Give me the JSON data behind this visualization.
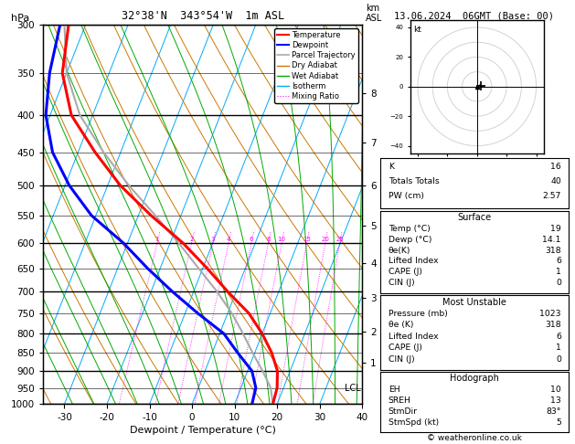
{
  "title_left": "32°38'N  343°54'W  1m ASL",
  "title_date": "13.06.2024  06GMT (Base: 00)",
  "xlabel": "Dewpoint / Temperature (°C)",
  "pressure_levels": [
    300,
    350,
    400,
    450,
    500,
    550,
    600,
    650,
    700,
    750,
    800,
    850,
    900,
    950,
    1000
  ],
  "pressure_major": [
    300,
    400,
    500,
    600,
    700,
    800,
    900,
    1000
  ],
  "t_min": -35,
  "t_max": 40,
  "temp_ticks": [
    -30,
    -20,
    -10,
    0,
    10,
    20,
    30,
    40
  ],
  "temp_profile_T": [
    19,
    18.5,
    17,
    14,
    10,
    5,
    -2,
    -9,
    -17,
    -27,
    -37,
    -46,
    -55,
    -61,
    -64
  ],
  "temp_profile_p": [
    1000,
    950,
    900,
    850,
    800,
    750,
    700,
    650,
    600,
    550,
    500,
    450,
    400,
    350,
    300
  ],
  "dewp_profile_T": [
    14.1,
    13.5,
    11,
    6,
    1,
    -7,
    -15,
    -23,
    -31,
    -41,
    -49,
    -56,
    -61,
    -64,
    -66
  ],
  "dewp_profile_p": [
    1000,
    950,
    900,
    850,
    800,
    750,
    700,
    650,
    600,
    550,
    500,
    450,
    400,
    350,
    300
  ],
  "parcel_T": [
    19,
    17,
    13.5,
    9.5,
    5.5,
    1.0,
    -4.5,
    -11,
    -18,
    -26,
    -35,
    -44,
    -53,
    -60,
    -65
  ],
  "parcel_p": [
    1000,
    950,
    900,
    850,
    800,
    750,
    700,
    650,
    600,
    550,
    500,
    450,
    400,
    350,
    300
  ],
  "lcl_pressure": 950,
  "mixing_ratio_values": [
    1,
    2,
    3,
    4,
    6,
    8,
    10,
    15,
    20,
    25
  ],
  "mixing_ratio_color": "#ff00ff",
  "isotherm_color": "#00aaff",
  "dry_adiabat_color": "#cc7700",
  "wet_adiabat_color": "#00aa00",
  "temp_color": "#ff0000",
  "dewp_color": "#0000ff",
  "parcel_color": "#aaaaaa",
  "km_ticks": [
    1,
    2,
    3,
    4,
    5,
    6,
    7,
    8
  ],
  "km_pressures": [
    877,
    795,
    715,
    640,
    568,
    500,
    436,
    373
  ],
  "skew_factor": 35,
  "indices": {
    "K": "16",
    "Totals Totals": "40",
    "PW (cm)": "2.57"
  },
  "surface_data": [
    [
      "Temp (°C)",
      "19"
    ],
    [
      "Dewp (°C)",
      "14.1"
    ],
    [
      "θe(K)",
      "318"
    ],
    [
      "Lifted Index",
      "6"
    ],
    [
      "CAPE (J)",
      "1"
    ],
    [
      "CIN (J)",
      "0"
    ]
  ],
  "unstable_data": [
    [
      "Pressure (mb)",
      "1023"
    ],
    [
      "θe (K)",
      "318"
    ],
    [
      "Lifted Index",
      "6"
    ],
    [
      "CAPE (J)",
      "1"
    ],
    [
      "CIN (J)",
      "0"
    ]
  ],
  "hodograph_data": [
    [
      "EH",
      "10"
    ],
    [
      "SREH",
      "13"
    ],
    [
      "StmDir",
      "83°"
    ],
    [
      "StmSpd (kt)",
      "5"
    ]
  ],
  "footer": "© weatheronline.co.uk"
}
